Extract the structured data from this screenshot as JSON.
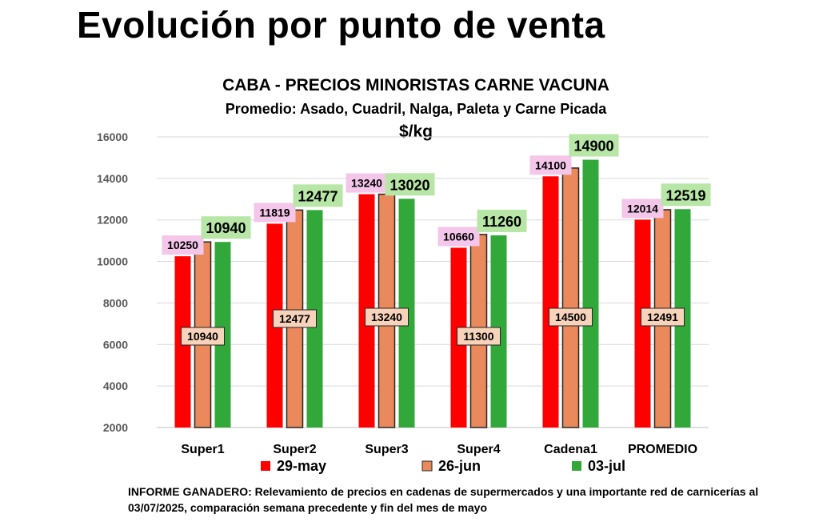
{
  "page_title": "Evolución por punto de venta",
  "footnote": "INFORME GANADERO: Relevamiento de precios en cadenas de supermercados y una importante red de carnicerías al 03/07/2025, comparación semana precedente y fin del mes de mayo",
  "colors": {
    "series_29may": "#ff0000",
    "series_26jun": "#e9895c",
    "series_03jul": "#33a83a",
    "label_29may_bg": "#f4c6ea",
    "label_26jun_bg": "#f7d3bb",
    "label_03jul_bg": "#b7e6a6"
  },
  "chart_data": {
    "type": "bar",
    "title": "CABA -  PRECIOS MINORISTAS CARNE VACUNA",
    "subtitle": "Promedio: Asado, Cuadril, Nalga, Paleta y Carne Picada",
    "ylabel": "$/kg",
    "xlabel": "",
    "categories": [
      "Super1",
      "Super2",
      "Super3",
      "Super4",
      "Cadena1",
      "PROMEDIO"
    ],
    "series": [
      {
        "name": "29-may",
        "values": [
          10250,
          11819,
          13240,
          10660,
          14100,
          12014
        ]
      },
      {
        "name": "26-jun",
        "values": [
          10940,
          12477,
          13240,
          11300,
          14500,
          12491
        ]
      },
      {
        "name": "03-jul",
        "values": [
          10940,
          12477,
          13020,
          11260,
          14900,
          12519
        ]
      }
    ],
    "ylim": [
      2000,
      16000
    ],
    "yticks": [
      2000,
      4000,
      6000,
      8000,
      10000,
      12000,
      14000,
      16000
    ],
    "grid": true,
    "legend": "bottom"
  }
}
